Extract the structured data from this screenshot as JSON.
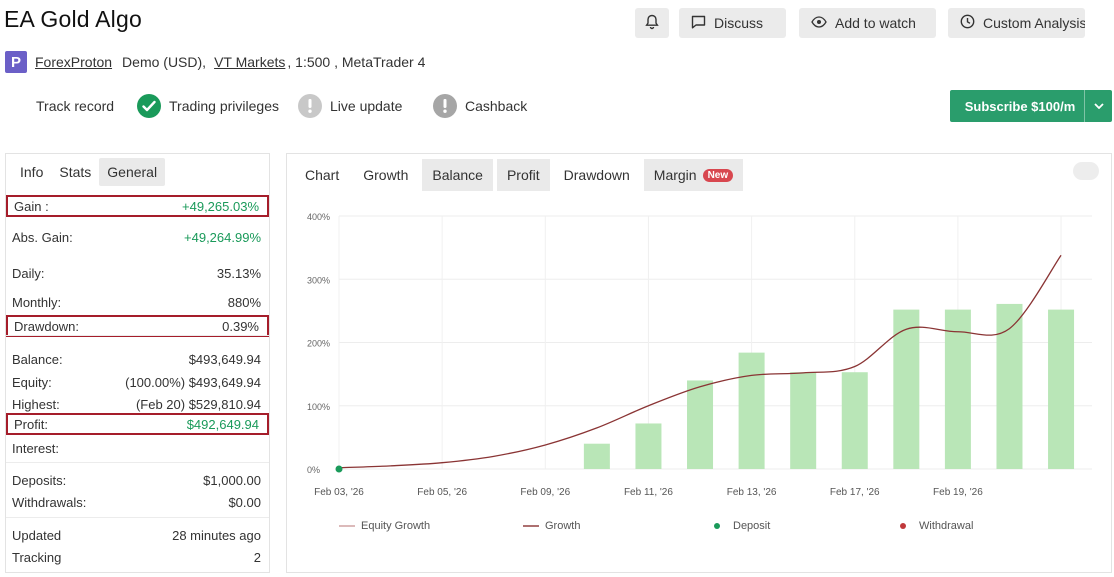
{
  "header": {
    "title": "EA Gold Algo",
    "discuss_label": "Discuss",
    "add_to_watch_label": "Add to watch",
    "custom_analysis_label": "Custom Analysis"
  },
  "account": {
    "broker_link": "ForexProton",
    "account_type": "Demo (USD),",
    "server_link": "VT Markets",
    "details": ", 1:500 , MetaTrader 4"
  },
  "badges": {
    "track_record": "Track record",
    "trading_privileges": "Trading privileges",
    "live_update": "Live update",
    "cashback": "Cashback"
  },
  "subscribe": {
    "label": "Subscribe $100/m"
  },
  "left_tabs": [
    "Info",
    "Stats",
    "General"
  ],
  "stats": [
    {
      "label": "Gain :",
      "value": "+49,265.03%",
      "green": true,
      "highlight": true
    },
    {
      "label": "Abs. Gain:",
      "value": "+49,264.99%",
      "green": true
    },
    {
      "label": "Daily:",
      "value": "35.13%"
    },
    {
      "label": "Monthly:",
      "value": "880%"
    },
    {
      "label": "Drawdown:",
      "value": "0.39%",
      "highlight": true
    },
    {
      "label": "Balance:",
      "value": "$493,649.94"
    },
    {
      "label": "Equity:",
      "value": "(100.00%) $493,649.94"
    },
    {
      "label": "Highest:",
      "value": "(Feb 20) $529,810.94"
    },
    {
      "label": "Profit:",
      "value": "$492,649.94",
      "green": true,
      "highlight": true
    },
    {
      "label": "Interest:",
      "value": ""
    },
    {
      "label": "Deposits:",
      "value": "$1,000.00"
    },
    {
      "label": "Withdrawals:",
      "value": "$0.00"
    },
    {
      "label": "Updated",
      "value": "28 minutes ago"
    },
    {
      "label": "Tracking",
      "value": "2"
    }
  ],
  "chart_tabs": [
    {
      "label": "Chart",
      "grey": false
    },
    {
      "label": "Growth",
      "grey": false
    },
    {
      "label": "Balance",
      "grey": true
    },
    {
      "label": "Profit",
      "grey": true
    },
    {
      "label": "Drawdown",
      "grey": false
    },
    {
      "label": "Margin",
      "grey": true,
      "badge": "New"
    }
  ],
  "colors": {
    "bar": "#b9e6b7",
    "line": "#8a3434",
    "deposit": "#1a9a5a",
    "withdrawal": "#c0393b",
    "subscribe": "#2a9d6c",
    "highlight": "#a51d2a"
  },
  "chart_data": {
    "type": "bar",
    "y_tick_labels": [
      "0%",
      "100%",
      "200%",
      "300%",
      "400%"
    ],
    "x_tick_labels": [
      "Feb 03, '26",
      "Feb 05, '26",
      "Feb 09, '26",
      "Feb 11, '26",
      "Feb 13, '26",
      "Feb 17, '26",
      "Feb 19, '26"
    ],
    "ylim": [
      0,
      400
    ],
    "grid": true,
    "legend_position": "bottom",
    "bar_x": [
      5,
      6,
      7,
      8,
      9,
      10,
      11,
      12,
      13,
      14
    ],
    "bar_values": [
      40,
      72,
      140,
      184,
      153,
      153,
      252,
      252,
      261,
      252
    ],
    "line_x": [
      0,
      1,
      2,
      3,
      4,
      5,
      6,
      7,
      8,
      9,
      10,
      11,
      12,
      13,
      14
    ],
    "line_values": [
      2,
      5,
      10,
      20,
      38,
      65,
      100,
      130,
      148,
      152,
      162,
      221,
      217,
      222,
      338
    ],
    "deposit_x": 0,
    "deposit_value": 0,
    "x_domain": [
      0,
      14.6
    ],
    "series": [
      {
        "name": "Equity Growth"
      },
      {
        "name": "Growth"
      },
      {
        "name": "Deposit"
      },
      {
        "name": "Withdrawal"
      }
    ]
  }
}
